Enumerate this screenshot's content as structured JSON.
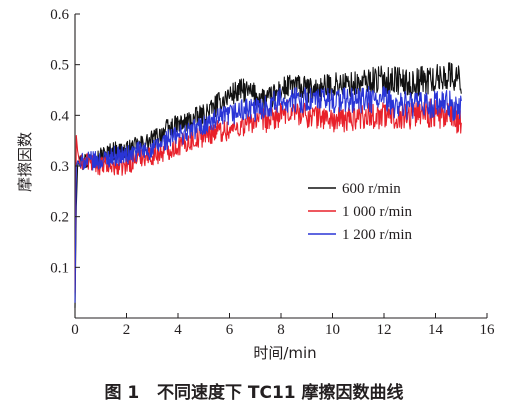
{
  "caption": "图 1   不同速度下 TC11 摩擦因数曲线",
  "chart_data": {
    "type": "line",
    "title": "",
    "xlabel": "时间/min",
    "ylabel": "摩擦因数",
    "xlim": [
      0,
      16
    ],
    "ylim": [
      0,
      0.6
    ],
    "xticks": [
      0,
      2,
      4,
      6,
      8,
      10,
      12,
      14,
      16
    ],
    "xtick_labels": [
      "0",
      "2",
      "4",
      "6",
      "8",
      "10",
      "12",
      "14",
      "16"
    ],
    "yticks": [
      0.1,
      0.2,
      0.3,
      0.4,
      0.5,
      0.6
    ],
    "ytick_labels": [
      "0.1",
      "0.2",
      "0.3",
      "0.4",
      "0.5",
      "0.6"
    ],
    "grid": false,
    "legend_position": "center-right",
    "series": [
      {
        "name": "600 r/min",
        "color": "#111111",
        "x": [
          0,
          0.05,
          0.1,
          0.2,
          0.3,
          0.5,
          1,
          1.5,
          2,
          2.5,
          3,
          3.5,
          4,
          4.5,
          5,
          5.5,
          6,
          6.5,
          7,
          7.5,
          8,
          8.5,
          9,
          9.5,
          10,
          10.5,
          11,
          11.5,
          12,
          12.5,
          13,
          13.5,
          14,
          14.5,
          15
        ],
        "y": [
          0.02,
          0.22,
          0.3,
          0.32,
          0.31,
          0.31,
          0.32,
          0.33,
          0.33,
          0.34,
          0.35,
          0.37,
          0.38,
          0.39,
          0.4,
          0.42,
          0.44,
          0.45,
          0.44,
          0.43,
          0.45,
          0.46,
          0.45,
          0.45,
          0.46,
          0.46,
          0.46,
          0.47,
          0.47,
          0.47,
          0.46,
          0.47,
          0.47,
          0.48,
          0.47
        ]
      },
      {
        "name": "1 000 r/min",
        "color": "#e8202a",
        "x": [
          0,
          0.05,
          0.1,
          0.2,
          0.3,
          0.5,
          1,
          1.5,
          2,
          2.5,
          3,
          3.5,
          4,
          4.5,
          5,
          5.5,
          6,
          6.5,
          7,
          7.5,
          8,
          8.5,
          9,
          9.5,
          10,
          10.5,
          11,
          11.5,
          12,
          12.5,
          13,
          13.5,
          14,
          14.5,
          15
        ],
        "y": [
          0.05,
          0.36,
          0.33,
          0.3,
          0.31,
          0.31,
          0.3,
          0.3,
          0.3,
          0.32,
          0.32,
          0.33,
          0.34,
          0.35,
          0.36,
          0.37,
          0.37,
          0.38,
          0.39,
          0.39,
          0.4,
          0.41,
          0.4,
          0.4,
          0.39,
          0.39,
          0.4,
          0.4,
          0.4,
          0.4,
          0.4,
          0.41,
          0.4,
          0.4,
          0.39
        ]
      },
      {
        "name": "1 200 r/min",
        "color": "#2a35d6",
        "x": [
          0,
          0.05,
          0.1,
          0.2,
          0.3,
          0.5,
          1,
          1.5,
          2,
          2.5,
          3,
          3.5,
          4,
          4.5,
          5,
          5.5,
          6,
          6.5,
          7,
          7.5,
          8,
          8.5,
          9,
          9.5,
          10,
          10.5,
          11,
          11.5,
          12,
          12.5,
          13,
          13.5,
          14,
          14.5,
          15
        ],
        "y": [
          0.03,
          0.3,
          0.31,
          0.3,
          0.31,
          0.31,
          0.31,
          0.32,
          0.32,
          0.33,
          0.33,
          0.35,
          0.36,
          0.37,
          0.38,
          0.39,
          0.4,
          0.41,
          0.41,
          0.42,
          0.43,
          0.43,
          0.43,
          0.43,
          0.43,
          0.43,
          0.43,
          0.43,
          0.43,
          0.42,
          0.42,
          0.42,
          0.42,
          0.42,
          0.41
        ]
      }
    ]
  }
}
